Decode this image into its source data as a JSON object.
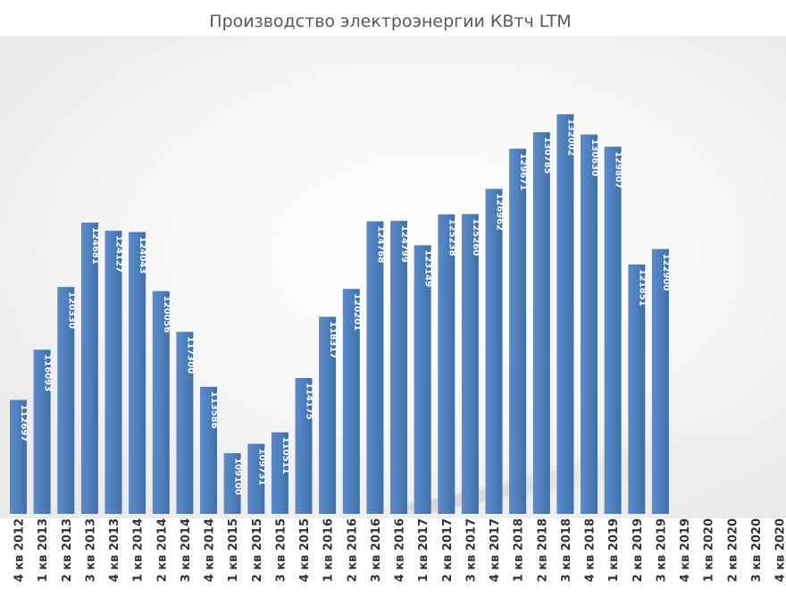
{
  "chart_data": {
    "type": "bar",
    "title": "Производство электроэнергии КВтч LTM",
    "xlabel": "",
    "ylabel": "",
    "ylim": [
      105000,
      133500
    ],
    "grid": false,
    "legend": "none",
    "bar_color": "#4f7fbf",
    "categories": [
      "4 кв 2012",
      "1 кв 2013",
      "2 кв 2013",
      "3 кв 2013",
      "4 кв 2013",
      "1 кв 2014",
      "2 кв 2014",
      "3 кв 2014",
      "4 кв 2014",
      "1 кв 2015",
      "2 кв 2015",
      "3 кв 2015",
      "4 кв 2015",
      "1 кв 2016",
      "2 кв 2016",
      "3 кв 2016",
      "4 кв 2016",
      "1 кв 2017",
      "2 кв 2017",
      "3 кв 2017",
      "4 кв 2017",
      "1 кв 2018",
      "2 кв 2018",
      "3 кв 2018",
      "4 кв 2018",
      "1 кв 2019",
      "2 кв 2019",
      "3 кв 2019",
      "4 кв 2019",
      "1 кв 2020",
      "2 кв 2020",
      "3 кв 2020",
      "4 кв 2020"
    ],
    "values": [
      112697,
      116093,
      120330,
      124681,
      124127,
      124043,
      120056,
      117300,
      113586,
      109100,
      109731,
      110511,
      114175,
      118317,
      120201,
      124768,
      124799,
      123149,
      125238,
      125260,
      126962,
      129671,
      130785,
      132002,
      130630,
      129807,
      121851,
      122900,
      null,
      null,
      null,
      null,
      null
    ]
  }
}
